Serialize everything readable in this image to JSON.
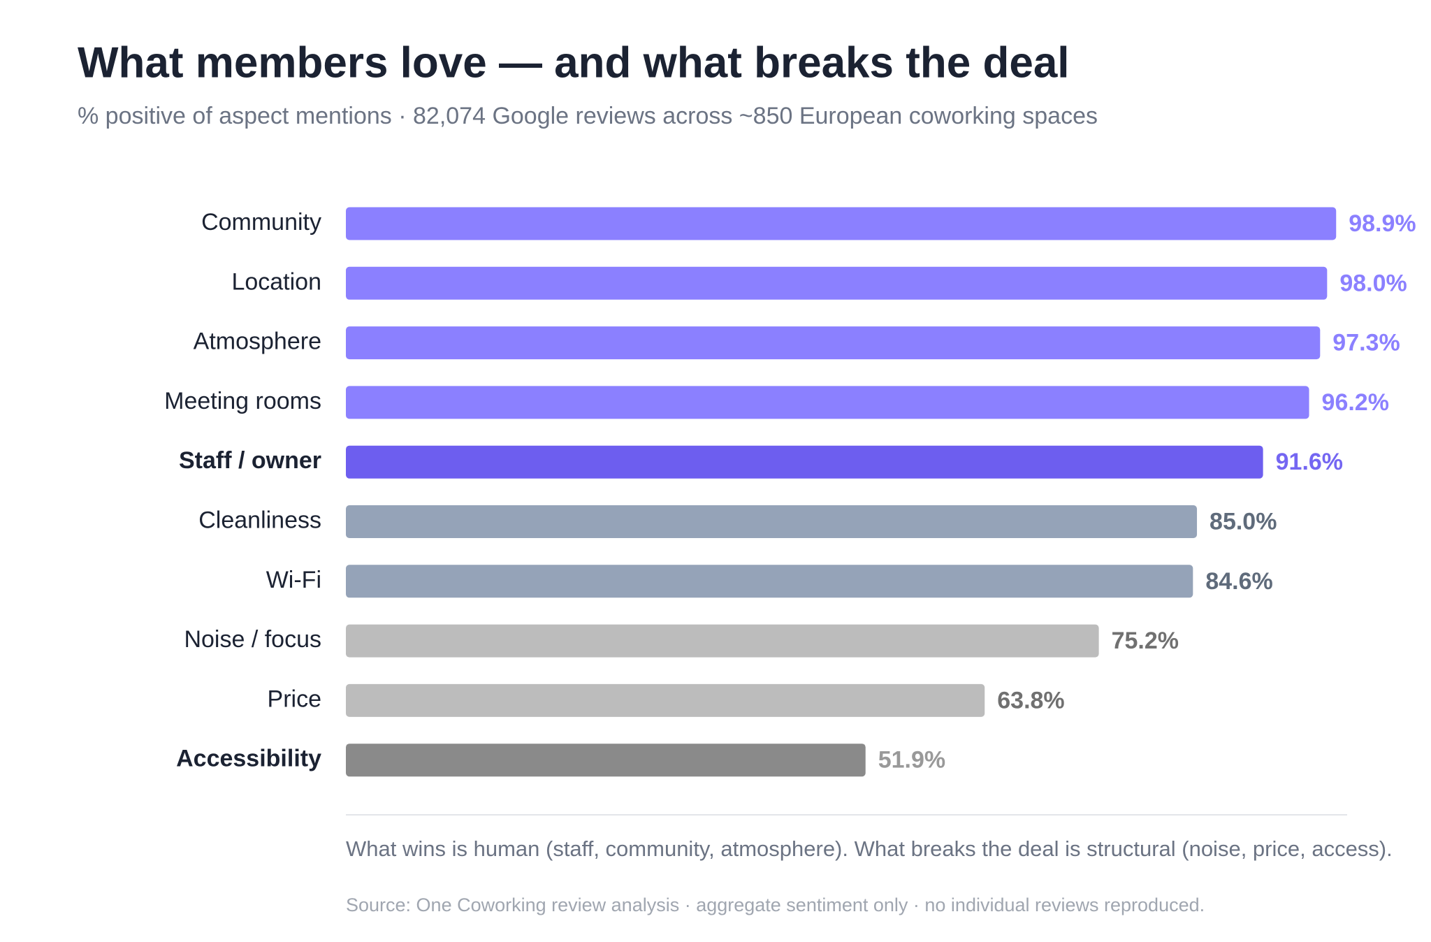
{
  "chart_data": {
    "type": "bar",
    "orientation": "horizontal",
    "title": "What members love — and what breaks the deal",
    "subtitle": "% positive of aspect mentions · 82,074 Google reviews across ~850 European coworking spaces",
    "categories": [
      "Community",
      "Location",
      "Atmosphere",
      "Meeting rooms",
      "Staff / owner",
      "Cleanliness",
      "Wi-Fi",
      "Noise / focus",
      "Price",
      "Accessibility"
    ],
    "values": [
      98.9,
      98.0,
      97.3,
      96.2,
      91.6,
      85.0,
      84.6,
      75.2,
      63.8,
      51.9
    ],
    "value_labels": [
      "98.9%",
      "98.0%",
      "97.3%",
      "96.2%",
      "91.6%",
      "85.0%",
      "84.6%",
      "75.2%",
      "63.8%",
      "51.9%"
    ],
    "colors": [
      "#8b80ff",
      "#8b80ff",
      "#8b80ff",
      "#8b80ff",
      "#6d5eef",
      "#95a3b8",
      "#95a3b8",
      "#bcbcbc",
      "#bcbcbc",
      "#8a8a8a"
    ],
    "label_colors": [
      "#8b80ff",
      "#8b80ff",
      "#8b80ff",
      "#8b80ff",
      "#7466f2",
      "#5f6b7b",
      "#5f6b7b",
      "#707070",
      "#707070",
      "#999999"
    ],
    "bold_categories": [
      false,
      false,
      false,
      false,
      true,
      false,
      false,
      false,
      false,
      true
    ],
    "xlim": [
      0,
      100
    ],
    "annotation": "What wins is human (staff, community, atmosphere). What breaks the deal is structural (noise, price, access).",
    "source": "Source: One Coworking review analysis · aggregate sentiment only · no individual reviews reproduced."
  }
}
